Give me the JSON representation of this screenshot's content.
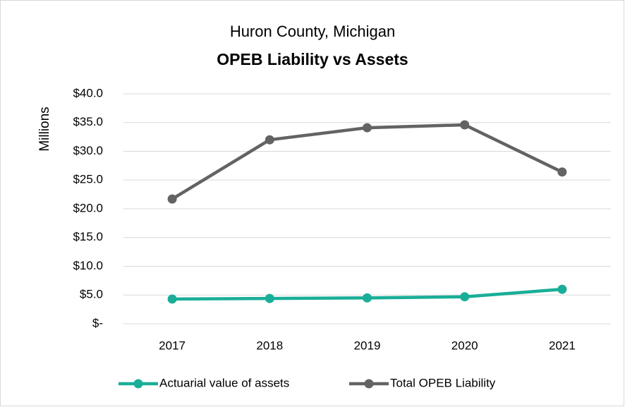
{
  "chart_data": {
    "type": "line",
    "title": "Huron County, Michigan",
    "subtitle": "OPEB Liability vs Assets",
    "y_label": "Millions",
    "categories": [
      "2017",
      "2018",
      "2019",
      "2020",
      "2021"
    ],
    "series": [
      {
        "name": "Actuarial value of assets",
        "color": "#1aae98",
        "values": [
          4.3,
          4.4,
          4.5,
          4.7,
          6.0
        ]
      },
      {
        "name": "Total OPEB Liability",
        "color": "#636363",
        "values": [
          21.7,
          32.0,
          34.1,
          34.6,
          26.4
        ]
      }
    ],
    "ylim": [
      0,
      40
    ],
    "yticks": [
      {
        "value": 0,
        "label": "$-"
      },
      {
        "value": 5,
        "label": "$5.0"
      },
      {
        "value": 10,
        "label": "$10.0"
      },
      {
        "value": 15,
        "label": "$15.0"
      },
      {
        "value": 20,
        "label": "$20.0"
      },
      {
        "value": 25,
        "label": "$25.0"
      },
      {
        "value": 30,
        "label": "$30.0"
      },
      {
        "value": 35,
        "label": "$35.0"
      },
      {
        "value": 40,
        "label": "$40.0"
      }
    ],
    "grid": true,
    "legend": "bottom"
  }
}
